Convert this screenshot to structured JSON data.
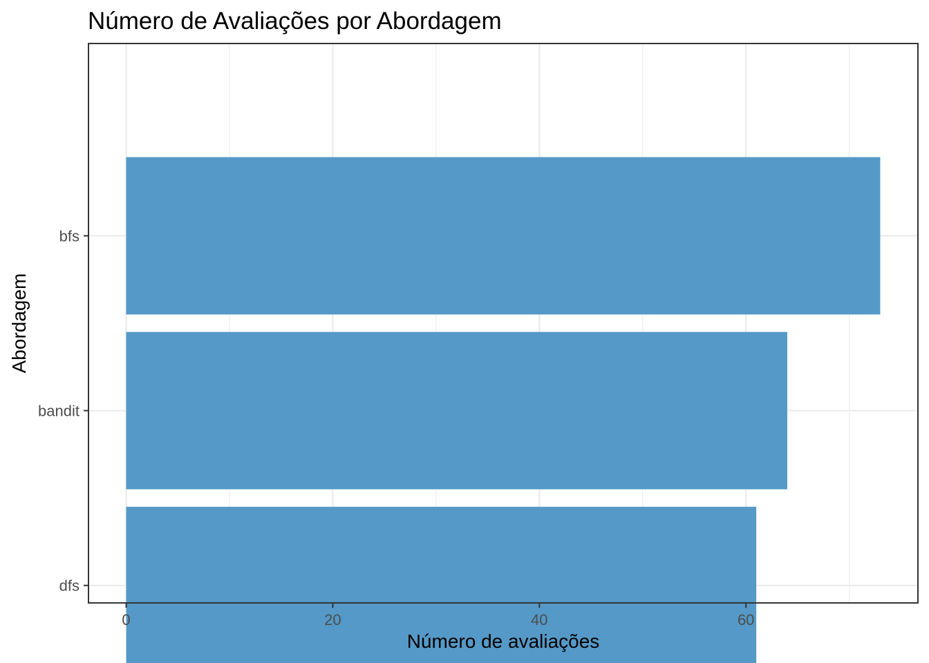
{
  "chart_data": {
    "type": "bar",
    "orientation": "horizontal",
    "title": "Número de Avaliações por Abordagem",
    "xlabel": "Número de avaliações",
    "ylabel": "Abordagem",
    "categories": [
      "bfs",
      "bandit",
      "dfs"
    ],
    "values": [
      73,
      64,
      61
    ],
    "xlim": [
      -3.65,
      76.65
    ],
    "xticks": [
      0,
      20,
      40,
      60
    ],
    "x_minor_ticks": [
      10,
      30,
      50,
      70
    ],
    "tick_labels": [
      "0",
      "20",
      "40",
      "60"
    ],
    "grid": true,
    "bar_color": "#5499c7",
    "grid_color": "#ebebeb",
    "panel_border_color": "#333333"
  }
}
